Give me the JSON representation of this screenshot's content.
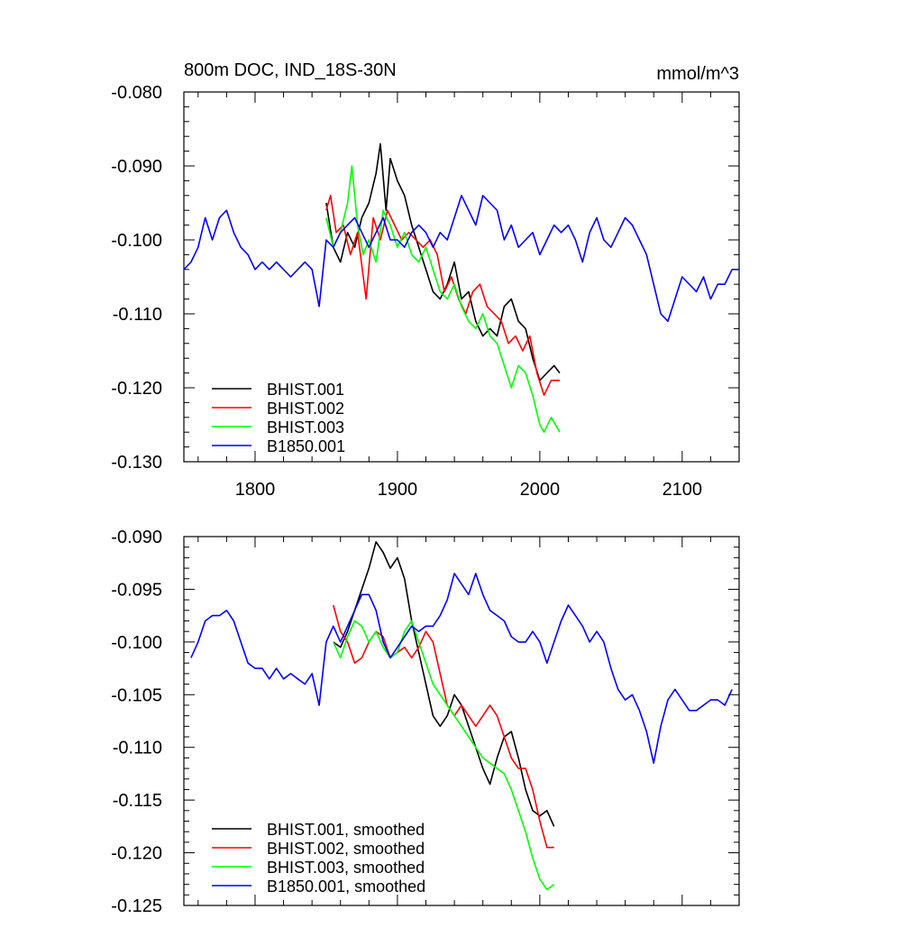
{
  "chart_data": [
    {
      "type": "line",
      "title": "800m DOC, IND_18S-30N",
      "units": "mmol/m^3",
      "xlim": [
        1750,
        2140
      ],
      "ylim": [
        -0.13,
        -0.08
      ],
      "xticks": [
        1800,
        1900,
        2000,
        2100
      ],
      "xtick_labels": [
        "1800",
        "1900",
        "2000",
        "2100"
      ],
      "yticks": [
        -0.08,
        -0.09,
        -0.1,
        -0.11,
        -0.12,
        -0.13
      ],
      "ytick_labels": [
        "-0.080",
        "-0.090",
        "-0.100",
        "-0.110",
        "-0.120",
        "-0.130"
      ],
      "legend_position": "bottom-left",
      "series": [
        {
          "name": "BHIST.001",
          "color": "#000000",
          "x": [
            1850,
            1855,
            1860,
            1865,
            1870,
            1875,
            1880,
            1885,
            1888,
            1892,
            1895,
            1900,
            1905,
            1910,
            1915,
            1920,
            1925,
            1930,
            1935,
            1940,
            1945,
            1950,
            1955,
            1960,
            1965,
            1970,
            1975,
            1980,
            1985,
            1990,
            1995,
            2000,
            2005,
            2010,
            2014
          ],
          "y": [
            -0.095,
            -0.101,
            -0.103,
            -0.099,
            -0.101,
            -0.097,
            -0.095,
            -0.091,
            -0.087,
            -0.096,
            -0.089,
            -0.092,
            -0.094,
            -0.098,
            -0.101,
            -0.104,
            -0.107,
            -0.108,
            -0.106,
            -0.103,
            -0.108,
            -0.107,
            -0.111,
            -0.113,
            -0.112,
            -0.113,
            -0.109,
            -0.108,
            -0.111,
            -0.112,
            -0.116,
            -0.119,
            -0.118,
            -0.117,
            -0.118
          ]
        },
        {
          "name": "BHIST.002",
          "color": "#ff0000",
          "x": [
            1850,
            1853,
            1857,
            1862,
            1867,
            1872,
            1878,
            1883,
            1888,
            1893,
            1898,
            1903,
            1908,
            1913,
            1918,
            1923,
            1928,
            1933,
            1938,
            1943,
            1948,
            1953,
            1958,
            1963,
            1968,
            1973,
            1978,
            1983,
            1988,
            1993,
            1998,
            2003,
            2008,
            2014
          ],
          "y": [
            -0.096,
            -0.094,
            -0.099,
            -0.098,
            -0.102,
            -0.099,
            -0.108,
            -0.097,
            -0.1,
            -0.096,
            -0.098,
            -0.1,
            -0.099,
            -0.1,
            -0.101,
            -0.1,
            -0.102,
            -0.107,
            -0.105,
            -0.108,
            -0.11,
            -0.107,
            -0.106,
            -0.109,
            -0.11,
            -0.111,
            -0.114,
            -0.113,
            -0.115,
            -0.113,
            -0.118,
            -0.121,
            -0.119,
            -0.119
          ]
        },
        {
          "name": "BHIST.003",
          "color": "#00ff00",
          "x": [
            1850,
            1855,
            1860,
            1865,
            1868,
            1872,
            1876,
            1880,
            1885,
            1890,
            1895,
            1900,
            1905,
            1910,
            1915,
            1920,
            1925,
            1930,
            1935,
            1940,
            1945,
            1950,
            1955,
            1960,
            1965,
            1970,
            1975,
            1980,
            1985,
            1990,
            1995,
            2000,
            2003,
            2008,
            2014
          ],
          "y": [
            -0.097,
            -0.101,
            -0.099,
            -0.095,
            -0.09,
            -0.098,
            -0.102,
            -0.1,
            -0.103,
            -0.096,
            -0.098,
            -0.101,
            -0.099,
            -0.102,
            -0.103,
            -0.101,
            -0.104,
            -0.107,
            -0.108,
            -0.106,
            -0.109,
            -0.111,
            -0.112,
            -0.11,
            -0.113,
            -0.114,
            -0.117,
            -0.12,
            -0.117,
            -0.118,
            -0.121,
            -0.125,
            -0.126,
            -0.124,
            -0.126
          ]
        },
        {
          "name": "B1850.001",
          "color": "#0000ff",
          "x": [
            1750,
            1755,
            1760,
            1765,
            1770,
            1775,
            1780,
            1785,
            1790,
            1795,
            1800,
            1805,
            1810,
            1815,
            1820,
            1825,
            1830,
            1835,
            1840,
            1845,
            1850,
            1855,
            1860,
            1865,
            1870,
            1875,
            1880,
            1885,
            1890,
            1895,
            1900,
            1905,
            1910,
            1915,
            1920,
            1925,
            1930,
            1935,
            1940,
            1945,
            1950,
            1955,
            1960,
            1965,
            1970,
            1975,
            1980,
            1985,
            1990,
            1995,
            2000,
            2005,
            2010,
            2015,
            2020,
            2025,
            2030,
            2035,
            2040,
            2045,
            2050,
            2055,
            2060,
            2065,
            2070,
            2075,
            2080,
            2085,
            2090,
            2095,
            2100,
            2105,
            2110,
            2115,
            2120,
            2125,
            2130,
            2135,
            2140
          ],
          "y": [
            -0.104,
            -0.103,
            -0.101,
            -0.097,
            -0.1,
            -0.097,
            -0.096,
            -0.099,
            -0.101,
            -0.102,
            -0.104,
            -0.103,
            -0.104,
            -0.103,
            -0.104,
            -0.105,
            -0.104,
            -0.103,
            -0.104,
            -0.109,
            -0.1,
            -0.101,
            -0.099,
            -0.098,
            -0.097,
            -0.099,
            -0.101,
            -0.099,
            -0.097,
            -0.1,
            -0.1,
            -0.101,
            -0.099,
            -0.098,
            -0.099,
            -0.101,
            -0.099,
            -0.1,
            -0.097,
            -0.094,
            -0.096,
            -0.098,
            -0.094,
            -0.095,
            -0.096,
            -0.1,
            -0.098,
            -0.101,
            -0.1,
            -0.099,
            -0.102,
            -0.1,
            -0.098,
            -0.099,
            -0.098,
            -0.1,
            -0.103,
            -0.099,
            -0.097,
            -0.1,
            -0.101,
            -0.099,
            -0.097,
            -0.098,
            -0.1,
            -0.102,
            -0.106,
            -0.11,
            -0.111,
            -0.108,
            -0.105,
            -0.106,
            -0.107,
            -0.105,
            -0.108,
            -0.106,
            -0.106,
            -0.104,
            -0.104
          ]
        }
      ]
    },
    {
      "type": "line",
      "title": "",
      "xlim": [
        1750,
        2140
      ],
      "ylim": [
        -0.125,
        -0.09
      ],
      "xticks": [
        1800,
        1900,
        2000,
        2100
      ],
      "yticks": [
        -0.09,
        -0.095,
        -0.1,
        -0.105,
        -0.11,
        -0.115,
        -0.12,
        -0.125
      ],
      "ytick_labels": [
        "-0.090",
        "-0.095",
        "-0.100",
        "-0.105",
        "-0.110",
        "-0.115",
        "-0.120",
        "-0.125"
      ],
      "legend_position": "bottom-left",
      "series": [
        {
          "name": "BHIST.001, smoothed",
          "color": "#000000",
          "x": [
            1855,
            1860,
            1865,
            1870,
            1875,
            1880,
            1885,
            1890,
            1895,
            1900,
            1905,
            1910,
            1915,
            1920,
            1925,
            1930,
            1935,
            1940,
            1945,
            1950,
            1955,
            1960,
            1965,
            1970,
            1975,
            1980,
            1985,
            1990,
            1995,
            2000,
            2005,
            2010
          ],
          "y": [
            -0.1,
            -0.1005,
            -0.099,
            -0.097,
            -0.095,
            -0.093,
            -0.0905,
            -0.0915,
            -0.093,
            -0.092,
            -0.094,
            -0.098,
            -0.101,
            -0.104,
            -0.107,
            -0.108,
            -0.107,
            -0.105,
            -0.106,
            -0.108,
            -0.11,
            -0.112,
            -0.1135,
            -0.111,
            -0.109,
            -0.1085,
            -0.111,
            -0.114,
            -0.116,
            -0.1165,
            -0.116,
            -0.1175
          ]
        },
        {
          "name": "BHIST.002, smoothed",
          "color": "#ff0000",
          "x": [
            1855,
            1860,
            1865,
            1870,
            1875,
            1880,
            1885,
            1890,
            1895,
            1900,
            1905,
            1910,
            1915,
            1920,
            1925,
            1930,
            1935,
            1940,
            1945,
            1950,
            1955,
            1960,
            1965,
            1970,
            1975,
            1980,
            1985,
            1990,
            1995,
            2000,
            2005,
            2010
          ],
          "y": [
            -0.0965,
            -0.099,
            -0.1,
            -0.102,
            -0.1015,
            -0.1,
            -0.099,
            -0.0995,
            -0.1015,
            -0.101,
            -0.1005,
            -0.1015,
            -0.1005,
            -0.099,
            -0.1,
            -0.103,
            -0.106,
            -0.107,
            -0.106,
            -0.107,
            -0.108,
            -0.107,
            -0.106,
            -0.107,
            -0.109,
            -0.111,
            -0.112,
            -0.112,
            -0.114,
            -0.117,
            -0.1195,
            -0.1195
          ]
        },
        {
          "name": "BHIST.003, smoothed",
          "color": "#00ff00",
          "x": [
            1855,
            1860,
            1865,
            1870,
            1875,
            1880,
            1885,
            1890,
            1895,
            1900,
            1905,
            1910,
            1915,
            1920,
            1925,
            1930,
            1935,
            1940,
            1945,
            1950,
            1955,
            1960,
            1965,
            1970,
            1975,
            1980,
            1985,
            1990,
            1995,
            2000,
            2005,
            2010
          ],
          "y": [
            -0.1,
            -0.1015,
            -0.0995,
            -0.098,
            -0.0985,
            -0.1,
            -0.099,
            -0.1005,
            -0.1015,
            -0.101,
            -0.099,
            -0.098,
            -0.1,
            -0.102,
            -0.104,
            -0.105,
            -0.106,
            -0.107,
            -0.108,
            -0.109,
            -0.11,
            -0.111,
            -0.1115,
            -0.112,
            -0.1125,
            -0.114,
            -0.116,
            -0.118,
            -0.1205,
            -0.1225,
            -0.1235,
            -0.123
          ]
        },
        {
          "name": "B1850.001, smoothed",
          "color": "#0000ff",
          "x": [
            1755,
            1760,
            1765,
            1770,
            1775,
            1780,
            1785,
            1790,
            1795,
            1800,
            1805,
            1810,
            1815,
            1820,
            1825,
            1830,
            1835,
            1840,
            1845,
            1850,
            1855,
            1860,
            1865,
            1870,
            1875,
            1880,
            1885,
            1890,
            1895,
            1900,
            1905,
            1910,
            1915,
            1920,
            1925,
            1930,
            1935,
            1940,
            1945,
            1950,
            1955,
            1960,
            1965,
            1970,
            1975,
            1980,
            1985,
            1990,
            1995,
            2000,
            2005,
            2010,
            2015,
            2020,
            2025,
            2030,
            2035,
            2040,
            2045,
            2050,
            2055,
            2060,
            2065,
            2070,
            2075,
            2080,
            2085,
            2090,
            2095,
            2100,
            2105,
            2110,
            2115,
            2120,
            2125,
            2130,
            2135
          ],
          "y": [
            -0.1015,
            -0.1,
            -0.098,
            -0.0975,
            -0.0975,
            -0.097,
            -0.098,
            -0.1,
            -0.102,
            -0.1025,
            -0.1025,
            -0.1035,
            -0.1025,
            -0.1035,
            -0.103,
            -0.1035,
            -0.104,
            -0.103,
            -0.106,
            -0.1,
            -0.0985,
            -0.1,
            -0.0985,
            -0.097,
            -0.0955,
            -0.0955,
            -0.097,
            -0.1,
            -0.1015,
            -0.1005,
            -0.0995,
            -0.0985,
            -0.099,
            -0.0985,
            -0.0985,
            -0.0975,
            -0.096,
            -0.0935,
            -0.0945,
            -0.0955,
            -0.0935,
            -0.0955,
            -0.097,
            -0.0975,
            -0.098,
            -0.0995,
            -0.1,
            -0.1,
            -0.099,
            -0.1,
            -0.102,
            -0.1,
            -0.098,
            -0.0965,
            -0.0975,
            -0.0985,
            -0.1,
            -0.099,
            -0.1,
            -0.1025,
            -0.1045,
            -0.1055,
            -0.105,
            -0.1065,
            -0.1085,
            -0.1115,
            -0.108,
            -0.1055,
            -0.1045,
            -0.1055,
            -0.1065,
            -0.1065,
            -0.106,
            -0.1055,
            -0.1055,
            -0.106,
            -0.1045
          ]
        }
      ]
    }
  ]
}
